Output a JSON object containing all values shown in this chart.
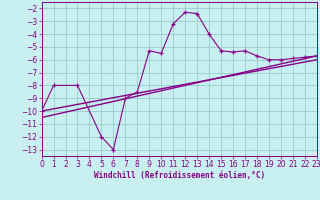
{
  "xlabel": "Windchill (Refroidissement éolien,°C)",
  "bg_color": "#c8f0f0",
  "line_color": "#880088",
  "grid_color": "#99cccc",
  "xlim": [
    0,
    23
  ],
  "ylim": [
    -13.5,
    -1.5
  ],
  "xticks": [
    0,
    1,
    2,
    3,
    4,
    5,
    6,
    7,
    8,
    9,
    10,
    11,
    12,
    13,
    14,
    15,
    16,
    17,
    18,
    19,
    20,
    21,
    22,
    23
  ],
  "yticks": [
    -2,
    -3,
    -4,
    -5,
    -6,
    -7,
    -8,
    -9,
    -10,
    -11,
    -12,
    -13
  ],
  "line1_x": [
    0,
    1,
    3,
    5,
    6,
    7,
    8,
    9,
    10,
    11,
    12,
    13,
    14,
    15,
    16,
    17,
    18,
    19,
    20,
    21,
    22,
    23
  ],
  "line1_y": [
    -10.0,
    -8.0,
    -8.0,
    -12.0,
    -13.0,
    -9.0,
    -8.5,
    -5.3,
    -5.5,
    -3.2,
    -2.3,
    -2.4,
    -4.0,
    -5.3,
    -5.4,
    -5.3,
    -5.7,
    -6.0,
    -6.0,
    -5.9,
    -5.8,
    -5.7
  ],
  "line2_x": [
    0,
    23
  ],
  "line2_y": [
    -10.0,
    -6.0
  ],
  "line3_x": [
    0,
    23
  ],
  "line3_y": [
    -10.5,
    -5.7
  ]
}
